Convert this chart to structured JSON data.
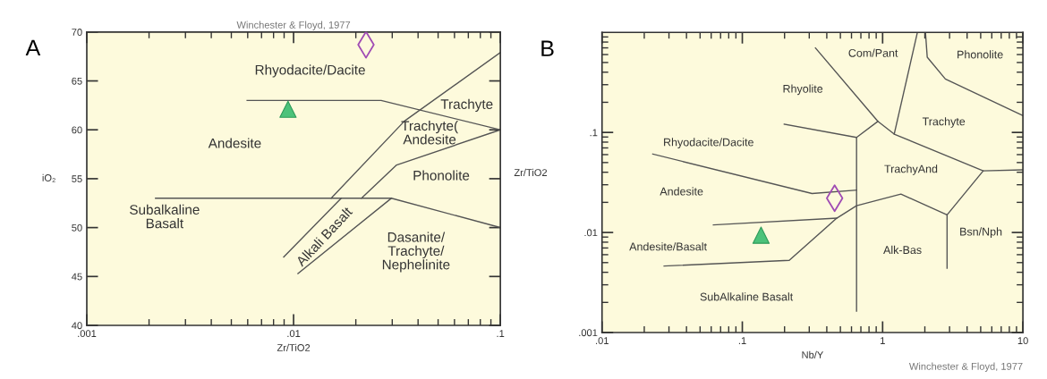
{
  "chart_data": [
    {
      "type": "scatter",
      "title": "Winchester & Floyd, 1977",
      "xlabel": "Zr/TiO2",
      "ylabel": "iO₂",
      "log": "x",
      "xlim": [
        0.001,
        0.1
      ],
      "ylim": [
        40,
        70
      ],
      "xticks": [
        {
          "value": 0.001,
          "label": ".001"
        },
        {
          "value": 0.01,
          "label": ".01"
        },
        {
          "value": 0.1,
          "label": ".1"
        }
      ],
      "yticks": [
        40,
        45,
        50,
        55,
        60,
        65,
        70
      ],
      "series": [
        {
          "type": "line",
          "color": "#555555",
          "x": [
            0.00596,
            0.0265,
            0.1
          ],
          "values": [
            63,
            63,
            60
          ]
        },
        {
          "type": "line",
          "color": "#555555",
          "x": [
            0.00215,
            0.0297,
            0.1
          ],
          "values": [
            53,
            53,
            50
          ]
        },
        {
          "type": "line",
          "color": "#555555",
          "x": [
            0.00896,
            0.017
          ],
          "values": [
            47,
            53
          ]
        },
        {
          "type": "line",
          "color": "#555555",
          "x": [
            0.0105,
            0.0297
          ],
          "values": [
            45.3,
            53
          ]
        },
        {
          "type": "line",
          "color": "#555555",
          "x": [
            0.0152,
            0.0344,
            0.1
          ],
          "values": [
            53,
            60.9,
            67.9
          ]
        },
        {
          "type": "line",
          "color": "#555555",
          "x": [
            0.0213,
            0.0315,
            0.1
          ],
          "values": [
            53,
            56.4,
            60
          ]
        },
        {
          "type": "scatter",
          "marker": "diamond",
          "color": "#a04cb4",
          "x": [
            0.0224
          ],
          "values": [
            68.7
          ]
        },
        {
          "type": "scatter",
          "marker": "triangle",
          "color": "#4cc27a",
          "x": [
            0.0094
          ],
          "values": [
            62.1
          ]
        }
      ],
      "annotations": [
        "A",
        "Rhyodacite/Dacite",
        "Trachyte",
        "Trachyte(\nAndesite",
        "Andesite",
        "Phonolite",
        "Subalkaline\nBasalt",
        "Alkali Basalt",
        "Dasanite/\nTrachyte/\nNephelinite"
      ]
    },
    {
      "type": "scatter",
      "xlabel": "Nb/Y",
      "ylabel": "Zr/TiO2",
      "log": "xy",
      "xlim": [
        0.01,
        10
      ],
      "ylim": [
        0.001,
        1
      ],
      "xticks": [
        {
          "value": 0.01,
          "label": ".01"
        },
        {
          "value": 0.1,
          "label": ".1"
        },
        {
          "value": 1,
          "label": "1"
        },
        10
      ],
      "yticks": [
        {
          "value": 0.001,
          "label": ".001"
        },
        {
          "value": 0.01,
          "label": ".01"
        },
        {
          "value": 0.1,
          "label": ".1"
        }
      ],
      "series": [
        {
          "type": "line",
          "color": "#555555",
          "x": [
            0.332,
            0.925,
            1.21,
            5.21,
            10
          ],
          "values": [
            0.698,
            0.129,
            0.0962,
            0.0413,
            0.0423
          ]
        },
        {
          "type": "line",
          "color": "#555555",
          "x": [
            0.199,
            0.652,
            0.925
          ],
          "values": [
            0.121,
            0.0891,
            0.129
          ]
        },
        {
          "type": "line",
          "color": "#555555",
          "x": [
            1.77,
            1.21
          ],
          "values": [
            1,
            0.0962
          ]
        },
        {
          "type": "line",
          "color": "#555555",
          "x": [
            2.02,
            2.08,
            2.8,
            10
          ],
          "values": [
            1,
            0.564,
            0.342,
            0.147
          ]
        },
        {
          "type": "line",
          "color": "#555555",
          "x": [
            0.652,
            0.652
          ],
          "values": [
            0.0891,
            0.00164
          ]
        },
        {
          "type": "line",
          "color": "#555555",
          "x": [
            0.023,
            0.314,
            0.652
          ],
          "values": [
            0.0608,
            0.0245,
            0.0265
          ]
        },
        {
          "type": "line",
          "color": "#555555",
          "x": [
            0.0622,
            0.471
          ],
          "values": [
            0.0119,
            0.0139
          ]
        },
        {
          "type": "line",
          "color": "#555555",
          "x": [
            0.0277,
            0.216,
            0.471,
            0.652,
            1.35,
            2.88,
            5.21
          ],
          "values": [
            0.00462,
            0.00527,
            0.0139,
            0.0185,
            0.0242,
            0.015,
            0.0413
          ]
        },
        {
          "type": "line",
          "color": "#555555",
          "x": [
            2.88,
            2.88
          ],
          "values": [
            0.015,
            0.00439
          ]
        },
        {
          "type": "scatter",
          "marker": "diamond",
          "color": "#a04cb4",
          "x": [
            0.455
          ],
          "values": [
            0.022
          ]
        },
        {
          "type": "scatter",
          "marker": "triangle",
          "color": "#4cc27a",
          "x": [
            0.136
          ],
          "values": [
            0.0094
          ]
        }
      ],
      "annotations": [
        "B",
        "Winchester & Floyd, 1977",
        "Com/Pant",
        "Phonolite",
        "Rhyolite",
        "Trachyte",
        "Rhyodacite/Dacite",
        "TrachyAnd",
        "Andesite",
        "Andesite/Basalt",
        "Alk-Bas",
        "Bsn/Nph",
        "SubAlkaline Basalt"
      ]
    }
  ]
}
